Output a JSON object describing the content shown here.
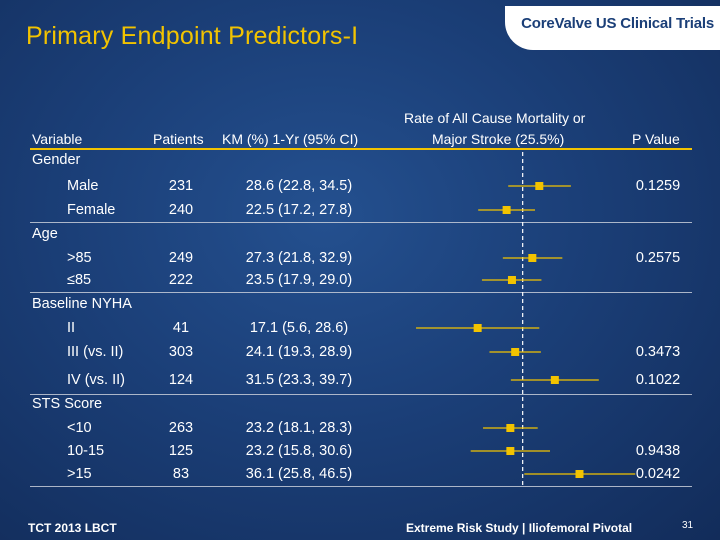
{
  "title": "Primary Endpoint Predictors-I",
  "brand": "CoreValve US Clinical Trials",
  "headers": {
    "variable": "Variable",
    "patients": "Patients",
    "km": "KM (%) 1-Yr (95% CI)",
    "rate_line1": "Rate of All Cause Mortality or",
    "rate_line2": "Major Stroke (25.5%)",
    "pvalue": "P Value"
  },
  "colors": {
    "title": "#f2c300",
    "marker": "#f2c300",
    "rule": "#f2c300",
    "reference_line": "#ffffff"
  },
  "chart_data": {
    "type": "forest",
    "reference_value": 25.5,
    "xlim": [
      0,
      50
    ],
    "groups": [
      {
        "label": "Gender",
        "rows": [
          {
            "label": "Male",
            "patients": "231",
            "km_text": "28.6 (22.8, 34.5)",
            "km": 28.6,
            "ci": [
              22.8,
              34.5
            ],
            "p": "0.1259"
          },
          {
            "label": "Female",
            "patients": "240",
            "km_text": "22.5 (17.2, 27.8)",
            "km": 22.5,
            "ci": [
              17.2,
              27.8
            ],
            "p": ""
          }
        ]
      },
      {
        "label": "Age",
        "rows": [
          {
            "label": ">85",
            "patients": "249",
            "km_text": "27.3 (21.8, 32.9)",
            "km": 27.3,
            "ci": [
              21.8,
              32.9
            ],
            "p": "0.2575"
          },
          {
            "label": "≤85",
            "patients": "222",
            "km_text": "23.5 (17.9, 29.0)",
            "km": 23.5,
            "ci": [
              17.9,
              29.0
            ],
            "p": ""
          }
        ]
      },
      {
        "label": "Baseline  NYHA",
        "rows": [
          {
            "label": "II",
            "patients": "41",
            "km_text": "17.1 (5.6, 28.6)",
            "km": 17.1,
            "ci": [
              5.6,
              28.6
            ],
            "p": ""
          },
          {
            "label": "III (vs. II)",
            "patients": "303",
            "km_text": "24.1 (19.3, 28.9)",
            "km": 24.1,
            "ci": [
              19.3,
              28.9
            ],
            "p": "0.3473"
          },
          {
            "label": "IV (vs. II)",
            "patients": "124",
            "km_text": "31.5 (23.3, 39.7)",
            "km": 31.5,
            "ci": [
              23.3,
              39.7
            ],
            "p": "0.1022"
          }
        ]
      },
      {
        "label": "STS Score",
        "rows": [
          {
            "label": "<10",
            "patients": "263",
            "km_text": "23.2 (18.1, 28.3)",
            "km": 23.2,
            "ci": [
              18.1,
              28.3
            ],
            "p": ""
          },
          {
            "label": "10-15",
            "patients": "125",
            "km_text": "23.2 (15.8, 30.6)",
            "km": 23.2,
            "ci": [
              15.8,
              30.6
            ],
            "p": "0.9438"
          },
          {
            "label": ">15",
            "patients": "83",
            "km_text": "36.1 (25.8, 46.5)",
            "km": 36.1,
            "ci": [
              25.8,
              46.5
            ],
            "p": "0.0242"
          }
        ]
      }
    ]
  },
  "footer": {
    "left": "TCT 2013 LBCT",
    "right": "Extreme Risk Study | Iliofemoral Pivotal",
    "page": "31"
  }
}
